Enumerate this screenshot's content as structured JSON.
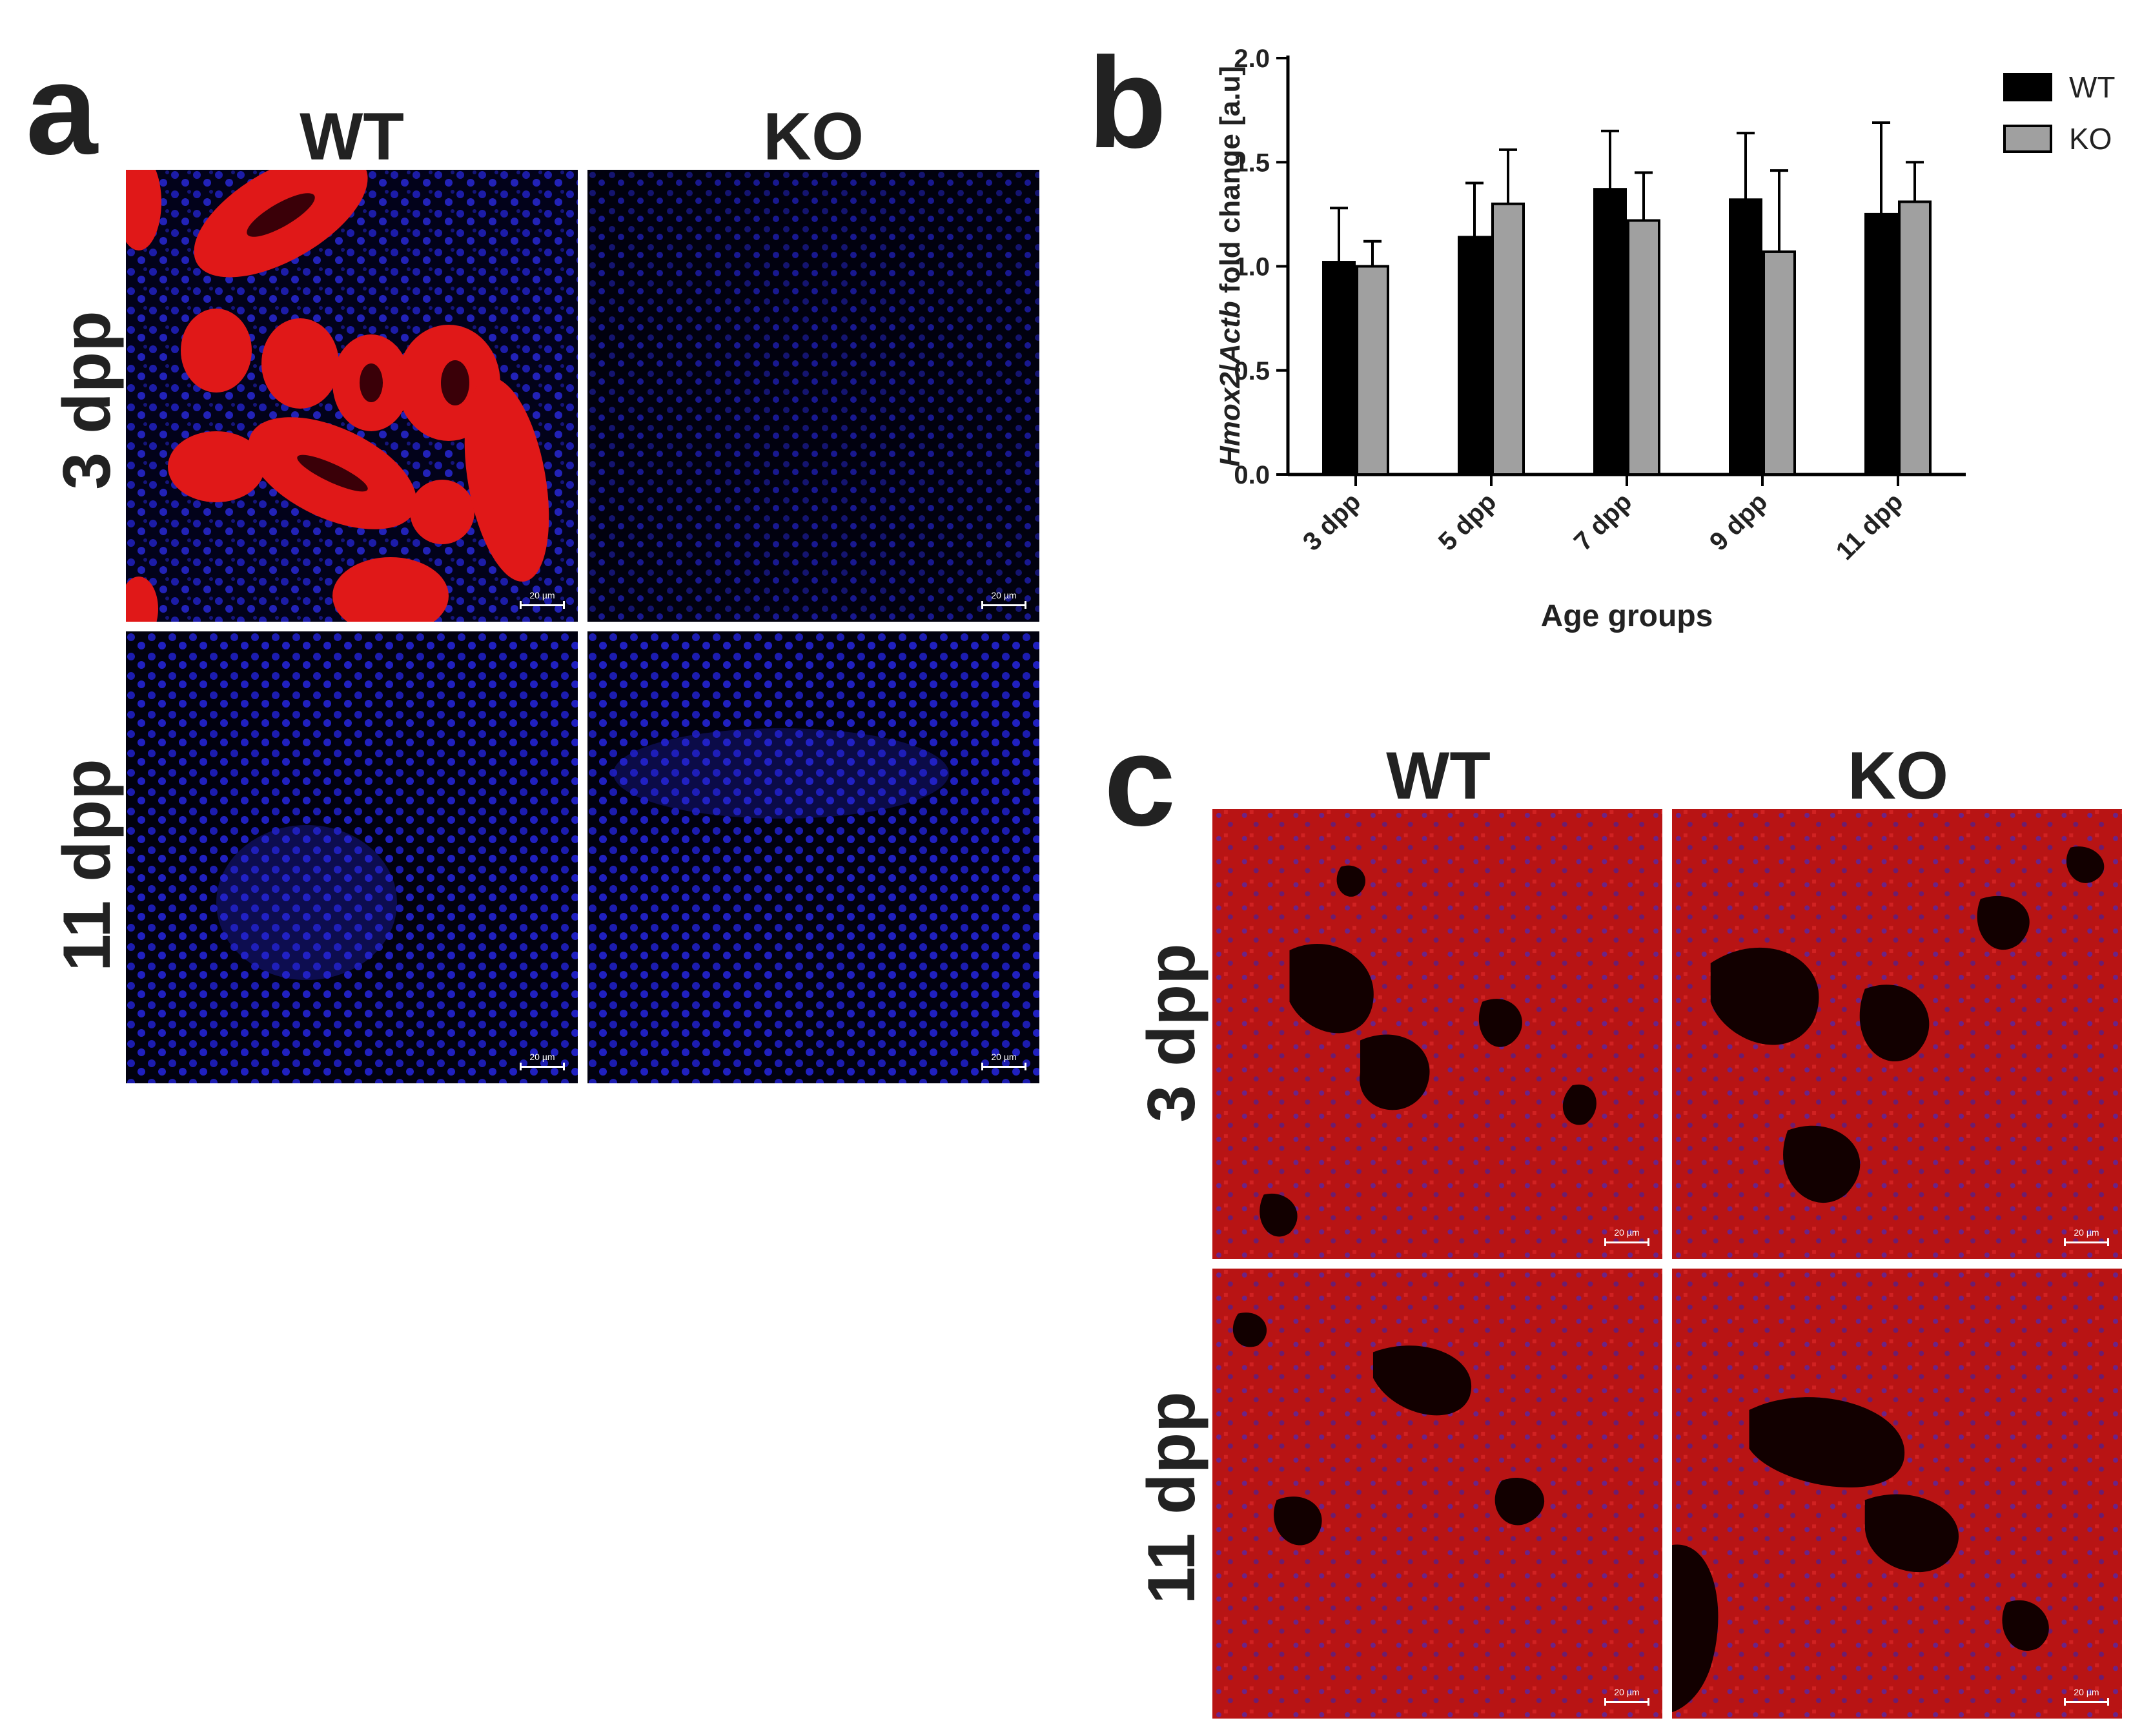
{
  "panels": {
    "a": {
      "letter": "a",
      "columns": [
        "WT",
        "KO"
      ],
      "rows": [
        "3 dpp",
        "11 dpp"
      ],
      "scale_label": "20 µm"
    },
    "b": {
      "letter": "b"
    },
    "c": {
      "letter": "c",
      "columns": [
        "WT",
        "KO"
      ],
      "rows": [
        "3 dpp",
        "11 dpp"
      ],
      "scale_label": "20 µm"
    }
  },
  "colors": {
    "wt_bar": "#000000",
    "ko_bar": "#a0a0a0",
    "stain_red": "#e01010",
    "stain_blue": "#2020e0"
  },
  "chart_data": {
    "type": "bar",
    "categories": [
      "3 dpp",
      "5 dpp",
      "7 dpp",
      "9 dpp",
      "11 dpp"
    ],
    "series": [
      {
        "name": "WT",
        "values": [
          1.02,
          1.14,
          1.37,
          1.32,
          1.25
        ],
        "error": [
          0.26,
          0.26,
          0.28,
          0.32,
          0.44
        ]
      },
      {
        "name": "KO",
        "values": [
          1.0,
          1.3,
          1.22,
          1.07,
          1.31
        ],
        "error": [
          0.12,
          0.26,
          0.23,
          0.39,
          0.19
        ]
      }
    ],
    "ylabel_italic_1": "Hmox2",
    "ylabel_sep": "/",
    "ylabel_italic_2": "Actb",
    "ylabel_rest": " fold change [a.u]",
    "xlabel": "Age groups",
    "ylim": [
      0,
      2.0
    ],
    "yticks": [
      "0.0",
      "0.5",
      "1.0",
      "1.5",
      "2.0"
    ],
    "legend_position": "top-right",
    "grid": false
  }
}
